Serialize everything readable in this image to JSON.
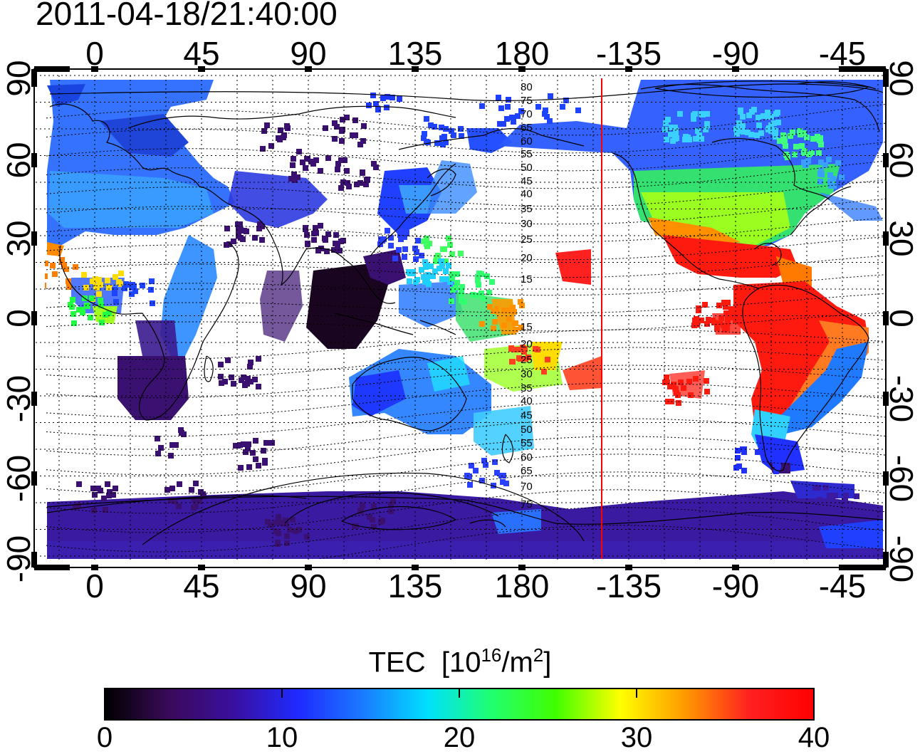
{
  "title": "2011-04-18/21:40:00",
  "top_axis_ticks": [
    "0",
    "45",
    "90",
    "135",
    "180",
    "-135",
    "-90",
    "-45"
  ],
  "bottom_axis_ticks": [
    "0",
    "45",
    "90",
    "135",
    "180",
    "-135",
    "-90",
    "-45"
  ],
  "left_axis_ticks": [
    "90",
    "60",
    "30",
    "0",
    "-30",
    "-60",
    "-90"
  ],
  "right_axis_ticks": [
    "90",
    "60",
    "30",
    "0",
    "-30",
    "-60",
    "-90"
  ],
  "contour_labels": [
    "80",
    "75",
    "70",
    "65",
    "60",
    "55",
    "50",
    "45",
    "40",
    "35",
    "30",
    "25",
    "20",
    "15",
    "15",
    "20",
    "25",
    "30",
    "35",
    "40",
    "45",
    "50",
    "55",
    "60",
    "65",
    "70",
    "75"
  ],
  "colorbar": {
    "title_main": "TEC",
    "title_unit_prefix": "[10",
    "title_exp": "16",
    "title_unit_mid": "/m",
    "title_exp2": "2",
    "title_unit_suffix": "]",
    "ticks": [
      "0",
      "10",
      "20",
      "30",
      "40"
    ],
    "min": 0,
    "max": 40,
    "colors": [
      "#000000",
      "#3a0a5a",
      "#3a0fa0",
      "#1f2aff",
      "#1a7aff",
      "#00e0ff",
      "#20ff70",
      "#40ff00",
      "#ffff00",
      "#ff9a00",
      "#ff2020",
      "#ff0000"
    ]
  },
  "colors": {
    "terminator_line": "#ff0000",
    "coast": "#000000",
    "grid": "#000000"
  }
}
